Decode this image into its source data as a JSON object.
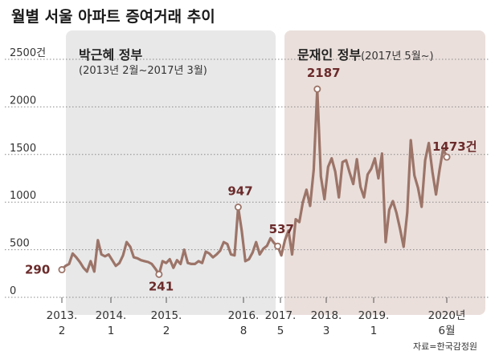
{
  "title": "월별 서울 아파트 증여거래 추이",
  "source": "자료=한국감정원",
  "colors": {
    "line": "#9c7468",
    "region1": "#e8e8e8",
    "region2": "#eadfdb",
    "label": "#6b2b2b"
  },
  "regions": [
    {
      "title": "박근혜 정부",
      "subtitle": "(2013년 2월~2017년 3월)"
    },
    {
      "title": "문재인 정부",
      "subtitle": "(2017년 5월~)"
    }
  ],
  "chart_data": {
    "type": "line",
    "ylim": [
      0,
      2500
    ],
    "yticks": [
      "0",
      "500",
      "1000",
      "1500",
      "2000",
      "2500건"
    ],
    "xtick_labels": [
      {
        "line1": "2013.",
        "line2": "2"
      },
      {
        "line1": "2014.",
        "line2": "1"
      },
      {
        "line1": "2015.",
        "line2": "2"
      },
      {
        "line1": "2016.",
        "line2": "8"
      },
      {
        "line1": "2017.",
        "line2": "5"
      },
      {
        "line1": "2018.",
        "line2": "3"
      },
      {
        "line1": "2019.",
        "line2": "1"
      },
      {
        "line1": "2020년",
        "line2": "6월"
      }
    ],
    "values": [
      290,
      330,
      350,
      460,
      420,
      370,
      310,
      270,
      380,
      270,
      600,
      450,
      430,
      450,
      390,
      330,
      360,
      440,
      580,
      530,
      420,
      410,
      390,
      380,
      370,
      350,
      300,
      241,
      380,
      360,
      400,
      310,
      390,
      350,
      500,
      360,
      350,
      350,
      380,
      360,
      480,
      460,
      420,
      450,
      490,
      580,
      560,
      450,
      440,
      947,
      700,
      380,
      400,
      470,
      580,
      450,
      510,
      540,
      620,
      570,
      537,
      440,
      600,
      700,
      450,
      820,
      790,
      1000,
      1130,
      960,
      1340,
      2187,
      1270,
      1030,
      1370,
      1460,
      1320,
      1050,
      1420,
      1440,
      1310,
      1190,
      1450,
      1160,
      1050,
      1290,
      1350,
      1460,
      1250,
      1510,
      580,
      920,
      1010,
      890,
      720,
      530,
      890,
      1650,
      1280,
      1150,
      950,
      1440,
      1620,
      1320,
      1080,
      1340,
      1560,
      1473
    ],
    "annotations": [
      {
        "text": "290",
        "index": 0
      },
      {
        "text": "241",
        "index": 27
      },
      {
        "text": "947",
        "index": 49
      },
      {
        "text": "537",
        "index": 60
      },
      {
        "text": "2187",
        "index": 71
      },
      {
        "text": "1473건",
        "index": 107
      }
    ]
  }
}
